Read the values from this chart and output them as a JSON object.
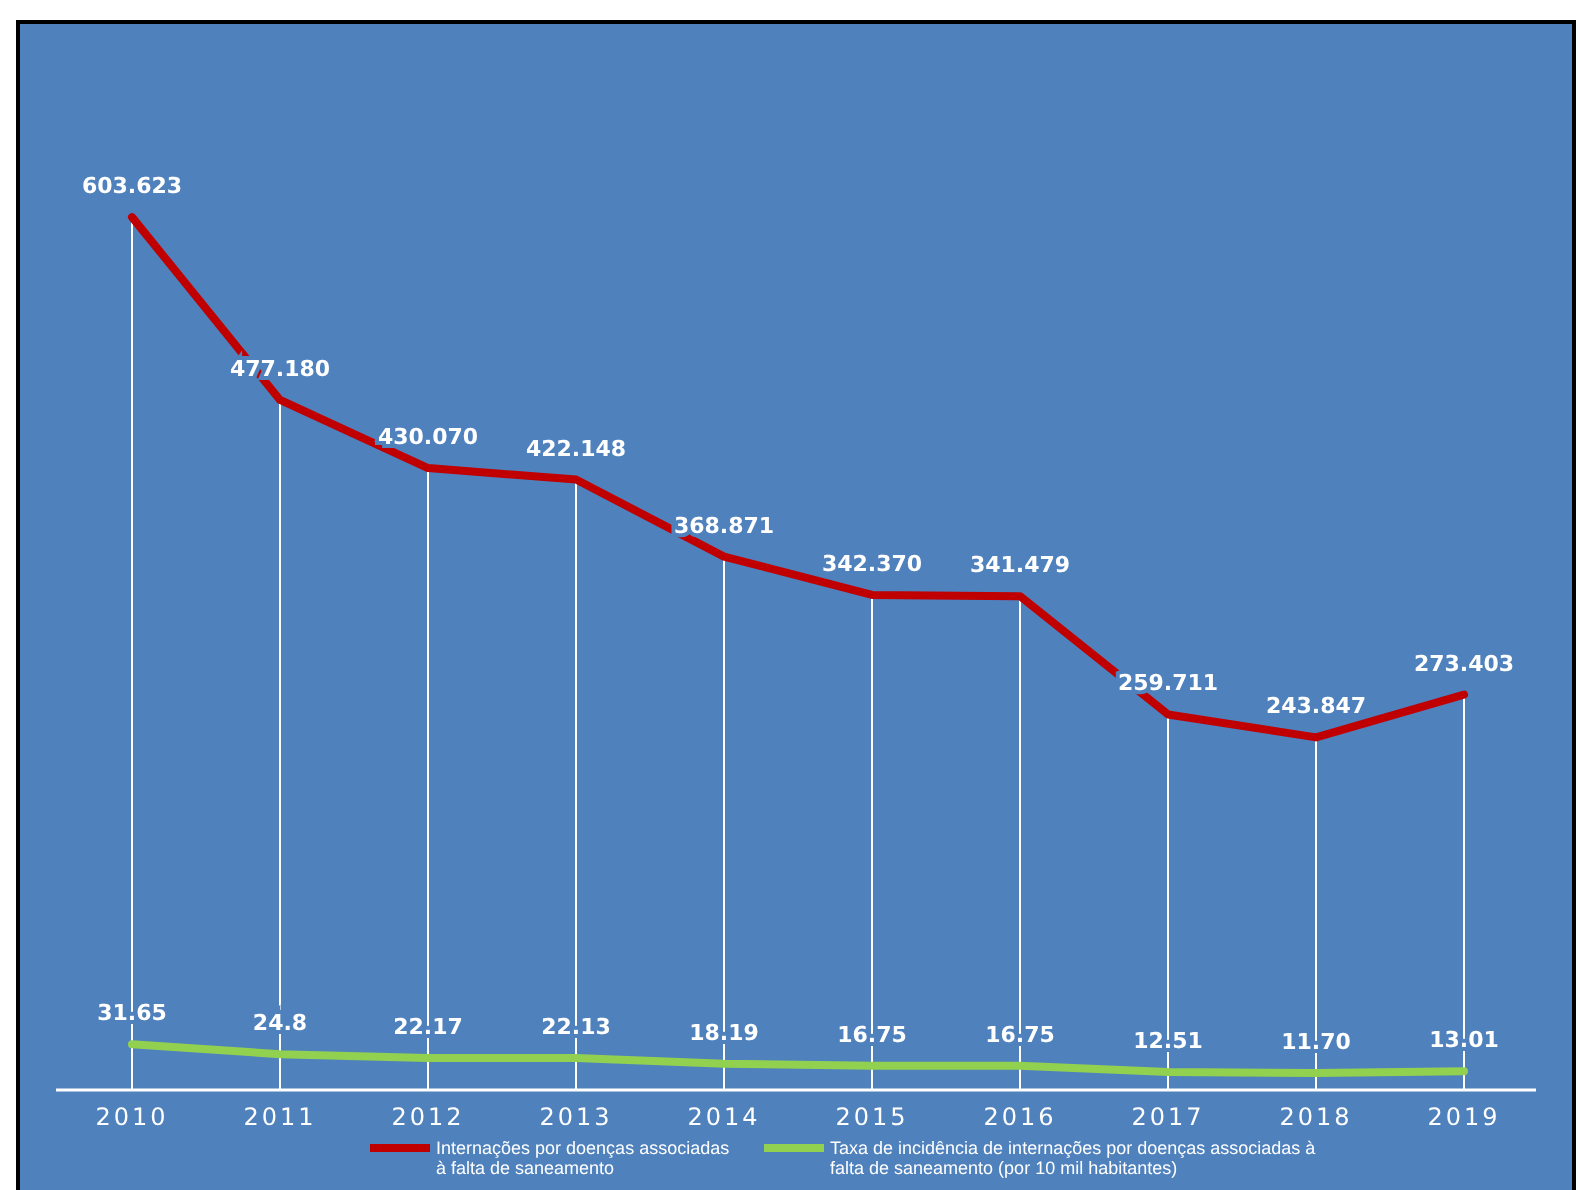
{
  "chart_data": {
    "type": "line",
    "categories": [
      "2010",
      "2011",
      "2012",
      "2013",
      "2014",
      "2015",
      "2016",
      "2017",
      "2018",
      "2019"
    ],
    "series": [
      {
        "name": "Internações por doenças associadas à falta de saneamento",
        "color": "#c00000",
        "values": [
          603.623,
          477.18,
          430.07,
          422.148,
          368.871,
          342.37,
          341.479,
          259.711,
          243.847,
          273.403
        ],
        "value_labels": [
          "603.623",
          "477.180",
          "430.070",
          "422.148",
          "368.871",
          "342.370",
          "341.479",
          "259.711",
          "243.847",
          "273.403"
        ]
      },
      {
        "name": "Taxa de incidência de internações por doenças associadas à falta de saneamento (por 10 mil habitantes)",
        "color": "#92d050",
        "values": [
          31.65,
          24.8,
          22.17,
          22.13,
          18.19,
          16.75,
          16.75,
          12.51,
          11.7,
          13.01
        ],
        "value_labels": [
          "31.65",
          "24.8",
          "22.17",
          "22.13",
          "18.19",
          "16.75",
          "16.75",
          "12.51",
          "11.70",
          "13.01"
        ]
      }
    ],
    "legend": "bottom",
    "grid": "x",
    "marker": "none",
    "line_style": "solid"
  }
}
